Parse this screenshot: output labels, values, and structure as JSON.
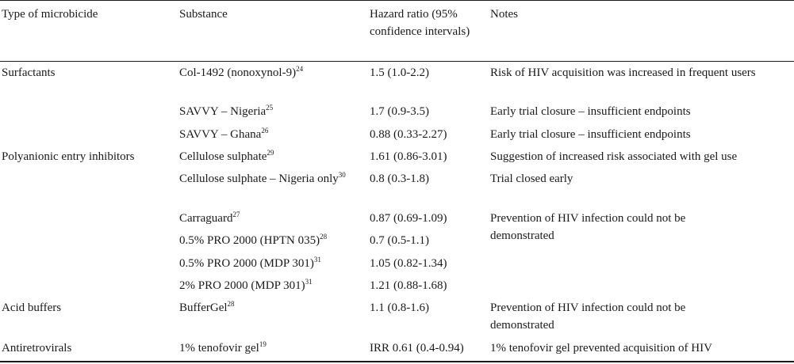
{
  "header": {
    "type": "Type of microbicide",
    "substance": "Substance",
    "hazard": "Hazard ratio (95% confidence intervals)",
    "notes": "Notes"
  },
  "rows": [
    {
      "type": "Surfactants",
      "substance": "Col-1492 (nonoxynol-9)",
      "ref": "24",
      "hr": "1.5 (1.0-2.2)",
      "notes": "Risk of HIV acquisition was increased in frequent users"
    },
    {
      "type": "",
      "substance": "SAVVY – Nigeria",
      "ref": "25",
      "hr": "1.7 (0.9-3.5)",
      "notes": "Early trial closure – insufficient endpoints"
    },
    {
      "type": "",
      "substance": "SAVVY – Ghana",
      "ref": "26",
      "hr": "0.88 (0.33-2.27)",
      "notes": "Early trial closure – insufficient endpoints"
    },
    {
      "type": "Polyanionic entry inhibitors",
      "substance": "Cellulose sulphate",
      "ref": "29",
      "hr": "1.61 (0.86-3.01)",
      "notes": "Suggestion of increased risk associated with gel use"
    },
    {
      "type": "",
      "substance": "Cellulose sulphate – Nigeria only",
      "ref": "30",
      "hr": "0.8 (0.3-1.8)",
      "notes": "Trial closed early"
    },
    {
      "type": "",
      "substance": "Carraguard",
      "ref": "27",
      "hr": "0.87 (0.69-1.09)",
      "notes": "Prevention of HIV infection could not be demonstrated"
    },
    {
      "type": "",
      "substance": "0.5% PRO 2000 (HPTN 035)",
      "ref": "28",
      "hr": "0.7 (0.5-1.1)",
      "notes": ""
    },
    {
      "type": "",
      "substance": "0.5% PRO 2000 (MDP 301)",
      "ref": "31",
      "hr": "1.05 (0.82-1.34)",
      "notes": ""
    },
    {
      "type": "",
      "substance": "2% PRO 2000 (MDP 301)",
      "ref": "31",
      "hr": "1.21 (0.88-1.68)",
      "notes": ""
    },
    {
      "type": "Acid buffers",
      "substance": "BufferGel",
      "ref": "28",
      "hr": "1.1 (0.8-1.6)",
      "notes": "Prevention of HIV infection could not be demonstrated"
    },
    {
      "type": "Antiretrovirals",
      "substance": "1% tenofovir gel",
      "ref": "19",
      "hr": "IRR 0.61 (0.4-0.94)",
      "notes": "1% tenofovir gel prevented acquisition of HIV"
    }
  ]
}
